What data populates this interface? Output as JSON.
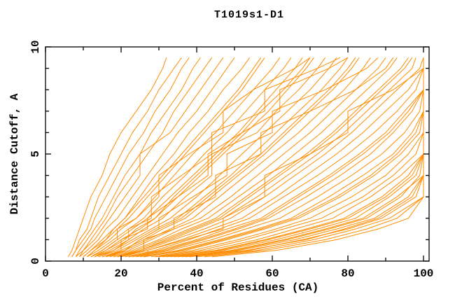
{
  "figure": {
    "background": "#ffffff",
    "text_color": "#000000"
  },
  "chart_data": {
    "type": "line",
    "title": "T1019s1-D1",
    "xlabel": "Percent of Residues (CA)",
    "ylabel": "Distance Cutoff, A",
    "xlim": [
      0,
      100
    ],
    "ylim": [
      0,
      10
    ],
    "x_major_ticks": [
      0,
      20,
      40,
      60,
      80,
      100
    ],
    "x_minor_ticks": [
      10,
      30,
      50,
      70,
      90
    ],
    "y_major_ticks": [
      0,
      5,
      10
    ],
    "y_minor_ticks": [
      1,
      2,
      3,
      4,
      6,
      7,
      8,
      9
    ],
    "grid": false,
    "legend": false,
    "line_color": "#FF8C00",
    "frame_color": "#000000",
    "cutoffs": [
      0.2,
      0.5,
      1,
      1.5,
      2,
      3,
      4,
      5,
      6,
      7,
      8,
      9,
      9.5
    ],
    "series_percents_at_cutoffs": [
      [
        6,
        7,
        8,
        9,
        10,
        12,
        15,
        17,
        20,
        24,
        28,
        31,
        32
      ],
      [
        7,
        8,
        9,
        11,
        12,
        14,
        17,
        20,
        23,
        27,
        30,
        34,
        36
      ],
      [
        7,
        8,
        10,
        12,
        13,
        16,
        19,
        22,
        26,
        29,
        33,
        36,
        38
      ],
      [
        8,
        9,
        11,
        13,
        15,
        18,
        21,
        25,
        28,
        32,
        36,
        39,
        41
      ],
      [
        8,
        10,
        12,
        14,
        16,
        19,
        23,
        27,
        31,
        34,
        38,
        42,
        44
      ],
      [
        9,
        10,
        13,
        15,
        17,
        21,
        25,
        25,
        33,
        37,
        41,
        45,
        47
      ],
      [
        9,
        11,
        14,
        16,
        19,
        23,
        27,
        31,
        35,
        40,
        44,
        48,
        50
      ],
      [
        10,
        12,
        15,
        18,
        21,
        25,
        29,
        34,
        38,
        43,
        47,
        52,
        54
      ],
      [
        10,
        12,
        16,
        19,
        22,
        27,
        32,
        37,
        42,
        47,
        52,
        56,
        58
      ],
      [
        11,
        13,
        17,
        20,
        24,
        29,
        34,
        39,
        45,
        50,
        55,
        60,
        62
      ],
      [
        11,
        14,
        18,
        22,
        26,
        31,
        37,
        42,
        48,
        53,
        58,
        63,
        65
      ],
      [
        12,
        15,
        19,
        23,
        27,
        33,
        39,
        45,
        51,
        56,
        61,
        66,
        68
      ],
      [
        12,
        16,
        20,
        25,
        29,
        35,
        41,
        47,
        53,
        59,
        64,
        69,
        71
      ],
      [
        13,
        17,
        22,
        26,
        31,
        37,
        44,
        44,
        56,
        61,
        67,
        72,
        74
      ],
      [
        13,
        18,
        23,
        28,
        33,
        40,
        46,
        52,
        58,
        64,
        70,
        75,
        77
      ],
      [
        14,
        19,
        24,
        29,
        35,
        42,
        49,
        55,
        61,
        67,
        73,
        78,
        80
      ],
      [
        15,
        20,
        26,
        31,
        37,
        44,
        51,
        58,
        64,
        70,
        76,
        81,
        83
      ],
      [
        15,
        21,
        27,
        33,
        39,
        46,
        53,
        60,
        67,
        73,
        79,
        84,
        86
      ],
      [
        16,
        22,
        28,
        34,
        41,
        49,
        56,
        63,
        70,
        76,
        82,
        88,
        90
      ],
      [
        17,
        23,
        30,
        36,
        43,
        51,
        59,
        66,
        73,
        79,
        85,
        91,
        93
      ],
      [
        18,
        24,
        31,
        38,
        45,
        53,
        61,
        69,
        76,
        82,
        88,
        94,
        96
      ],
      [
        18,
        25,
        33,
        40,
        47,
        56,
        64,
        72,
        79,
        85,
        91,
        97,
        98
      ],
      [
        19,
        26,
        34,
        42,
        49,
        58,
        66,
        74,
        81,
        87,
        93,
        99,
        100
      ],
      [
        20,
        27,
        36,
        44,
        52,
        61,
        69,
        77,
        84,
        90,
        96,
        100,
        100
      ],
      [
        21,
        29,
        38,
        46,
        54,
        63,
        72,
        80,
        87,
        93,
        98,
        100,
        100
      ],
      [
        22,
        30,
        40,
        48,
        57,
        66,
        75,
        83,
        90,
        95,
        100,
        100,
        100
      ],
      [
        23,
        32,
        42,
        51,
        59,
        69,
        78,
        86,
        92,
        97,
        100,
        100,
        100
      ],
      [
        24,
        33,
        44,
        53,
        62,
        72,
        81,
        89,
        95,
        99,
        100,
        100,
        100
      ],
      [
        25,
        35,
        46,
        56,
        65,
        75,
        84,
        92,
        97,
        100,
        100,
        100,
        100
      ],
      [
        26,
        37,
        48,
        58,
        67,
        78,
        87,
        94,
        99,
        100,
        100,
        100,
        100
      ],
      [
        28,
        39,
        51,
        61,
        70,
        81,
        90,
        96,
        100,
        100,
        100,
        100,
        100
      ],
      [
        29,
        41,
        53,
        63,
        73,
        84,
        92,
        98,
        100,
        100,
        100,
        100,
        100
      ],
      [
        30,
        43,
        56,
        66,
        76,
        86,
        94,
        100,
        100,
        100,
        100,
        100,
        100
      ],
      [
        32,
        45,
        58,
        69,
        79,
        89,
        96,
        100,
        100,
        100,
        100,
        100,
        100
      ],
      [
        33,
        47,
        61,
        72,
        82,
        91,
        98,
        100,
        100,
        100,
        100,
        100,
        100
      ],
      [
        35,
        49,
        63,
        74,
        84,
        93,
        100,
        100,
        100,
        100,
        100,
        100,
        100
      ],
      [
        36,
        51,
        66,
        77,
        87,
        96,
        100,
        100,
        100,
        100,
        100,
        100,
        100
      ],
      [
        38,
        54,
        68,
        80,
        89,
        98,
        100,
        100,
        100,
        100,
        100,
        100,
        100
      ],
      [
        40,
        56,
        71,
        82,
        91,
        100,
        100,
        100,
        100,
        100,
        100,
        100,
        100
      ],
      [
        42,
        58,
        74,
        85,
        93,
        100,
        100,
        100,
        100,
        100,
        100,
        100,
        100
      ],
      [
        44,
        61,
        77,
        88,
        96,
        100,
        100,
        100,
        100,
        100,
        100,
        100,
        100
      ],
      [
        37,
        53,
        69,
        79,
        88,
        97,
        100,
        100,
        100,
        100,
        100,
        100,
        100
      ],
      [
        34,
        50,
        64,
        75,
        85,
        94,
        99,
        100,
        100,
        100,
        100,
        100,
        100
      ],
      [
        31,
        46,
        59,
        70,
        80,
        90,
        97,
        100,
        100,
        100,
        100,
        100,
        100
      ],
      [
        14,
        18,
        22,
        22,
        28,
        28,
        36,
        44,
        44,
        58,
        58,
        72,
        78
      ],
      [
        12,
        15,
        19,
        19,
        24,
        30,
        30,
        38,
        47,
        47,
        55,
        66,
        70
      ],
      [
        16,
        20,
        20,
        27,
        27,
        35,
        43,
        43,
        52,
        62,
        62,
        75,
        80
      ],
      [
        20,
        26,
        26,
        34,
        34,
        45,
        45,
        57,
        57,
        70,
        82,
        90,
        92
      ],
      [
        17,
        21,
        25,
        30,
        30,
        39,
        48,
        48,
        60,
        60,
        74,
        85,
        88
      ],
      [
        27,
        27,
        37,
        47,
        47,
        58,
        58,
        70,
        80,
        80,
        92,
        100,
        100
      ],
      [
        13,
        16,
        21,
        24,
        29,
        34,
        40,
        46,
        52,
        57,
        63,
        68,
        70
      ],
      [
        16,
        21,
        25,
        30,
        36,
        43,
        50,
        57,
        63,
        69,
        75,
        80,
        82
      ],
      [
        19,
        25,
        32,
        39,
        46,
        54,
        62,
        70,
        77,
        83,
        89,
        95,
        97
      ],
      [
        22,
        31,
        41,
        50,
        58,
        67,
        76,
        84,
        91,
        96,
        100,
        100,
        100
      ],
      [
        26,
        36,
        47,
        57,
        66,
        77,
        86,
        93,
        98,
        100,
        100,
        100,
        100
      ],
      [
        11,
        13,
        16,
        18,
        21,
        26,
        31,
        36,
        41,
        46,
        51,
        55,
        57
      ]
    ]
  }
}
